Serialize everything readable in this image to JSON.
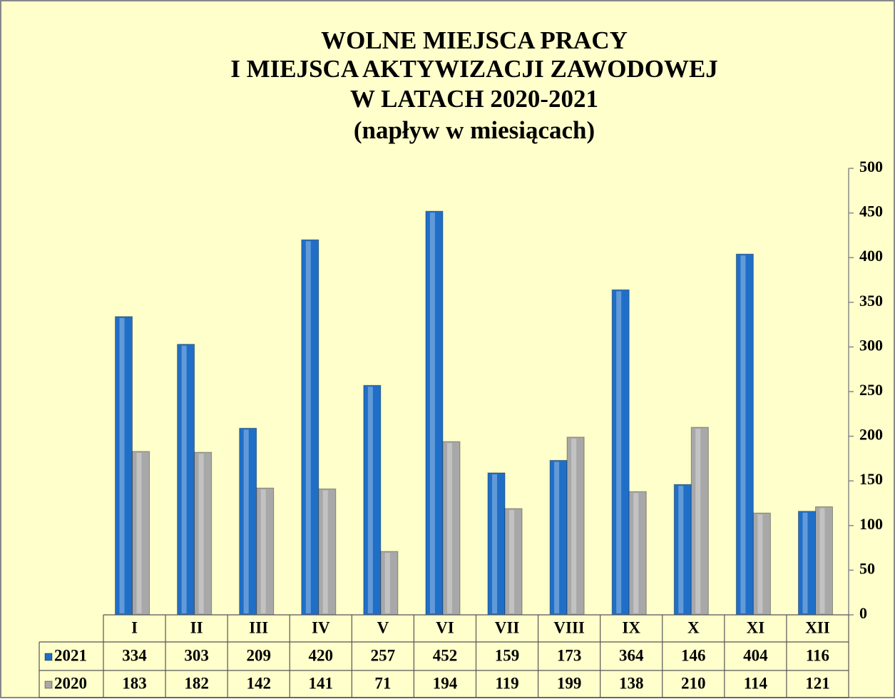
{
  "chart_data": {
    "type": "bar",
    "title_lines": [
      "WOLNE MIEJSCA PRACY",
      "I MIEJSCA AKTYWIZACJI ZAWODOWEJ",
      "W LATACH 2020-2021",
      "(napływ w miesiącach)"
    ],
    "categories": [
      "I",
      "II",
      "III",
      "IV",
      "V",
      "VI",
      "VII",
      "VIII",
      "IX",
      "X",
      "XI",
      "XII"
    ],
    "series": [
      {
        "name": "2021",
        "color": "#1f6fc8",
        "values": [
          334,
          303,
          209,
          420,
          257,
          452,
          159,
          173,
          364,
          146,
          404,
          116
        ]
      },
      {
        "name": "2020",
        "color": "#a8a8a8",
        "values": [
          183,
          182,
          142,
          141,
          71,
          194,
          119,
          199,
          138,
          210,
          114,
          121
        ]
      }
    ],
    "ylim": [
      0,
      500
    ],
    "yticks": [
      0,
      50,
      100,
      150,
      200,
      250,
      300,
      350,
      400,
      450,
      500
    ],
    "y_axis_side": "right",
    "data_table": true
  }
}
